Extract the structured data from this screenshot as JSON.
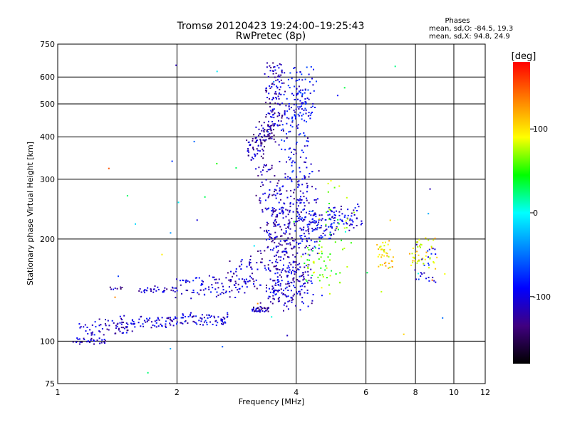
{
  "chart_data": {
    "type": "scatter",
    "title_line1": "Tromsø 20120423 19:24:00–19:25:43",
    "title_line2": "RwPretec (8p)",
    "xlabel": "Frequency [MHz]",
    "ylabel": "Stationary phase Virtual Height [km]",
    "x_scale": "log",
    "y_scale": "log",
    "xlim": [
      1,
      12
    ],
    "ylim": [
      75,
      750
    ],
    "x_ticks": [
      1,
      2,
      4,
      6,
      8,
      10,
      12
    ],
    "y_ticks": [
      75,
      100,
      200,
      300,
      400,
      500,
      600,
      750
    ],
    "x_grid": [
      2,
      4,
      6,
      8,
      10
    ],
    "y_grid": [
      100,
      200,
      300,
      400,
      500,
      600
    ],
    "grid": true,
    "phases_box": {
      "title": "Phases",
      "line1": "mean, sd,O: -84.5, 19.3",
      "line2": "mean, sd,X:  94.8, 24.9"
    },
    "colorbar": {
      "label": "[deg]",
      "range": [
        -180,
        180
      ],
      "ticks": [
        100,
        0,
        -100
      ],
      "colors": [
        "#ff0000",
        "#ff8000",
        "#ffff00",
        "#00ff00",
        "#00ffff",
        "#0080ff",
        "#0000ff",
        "#400080",
        "#000000"
      ]
    },
    "series": [
      {
        "x": [
          1.05,
          1.4
        ],
        "y": [
          100,
          100
        ],
        "phase": -110,
        "spread": 0.04,
        "n": 30
      },
      {
        "x": [
          1.12,
          1.25
        ],
        "y": [
          102,
          112
        ],
        "phase": -105,
        "spread": 0.03,
        "n": 18
      },
      {
        "x": [
          1.25,
          1.55
        ],
        "y": [
          105,
          115
        ],
        "phase": -110,
        "spread": 0.035,
        "n": 45
      },
      {
        "x": [
          1.45,
          1.95
        ],
        "y": [
          110,
          118
        ],
        "phase": -105,
        "spread": 0.03,
        "n": 60
      },
      {
        "x": [
          1.95,
          2.7
        ],
        "y": [
          112,
          120
        ],
        "phase": -100,
        "spread": 0.03,
        "n": 80
      },
      {
        "x": [
          1.6,
          2.0
        ],
        "y": [
          140,
          145
        ],
        "phase": -110,
        "spread": 0.015,
        "n": 35
      },
      {
        "x": [
          2.0,
          2.8
        ],
        "y": [
          135,
          155
        ],
        "phase": -105,
        "spread": 0.03,
        "n": 70
      },
      {
        "x": [
          1.35,
          1.45
        ],
        "y": [
          142,
          145
        ],
        "phase": -120,
        "spread": 0.01,
        "n": 8
      },
      {
        "x": [
          2.7,
          3.2
        ],
        "y": [
          140,
          175
        ],
        "phase": -110,
        "spread": 0.04,
        "n": 60
      },
      {
        "x": [
          3.1,
          3.4
        ],
        "y": [
          122,
          126
        ],
        "phase": -120,
        "spread": 0.01,
        "n": 35
      },
      {
        "x": [
          3.2,
          3.6
        ],
        "y": [
          130,
          330
        ],
        "phase": -115,
        "spread": 0.04,
        "n": 120
      },
      {
        "x": [
          3.4,
          3.9
        ],
        "y": [
          125,
          250
        ],
        "phase": -110,
        "spread": 0.05,
        "n": 150
      },
      {
        "x": [
          3.6,
          4.2
        ],
        "y": [
          150,
          300
        ],
        "phase": -110,
        "spread": 0.05,
        "n": 130
      },
      {
        "x": [
          3.8,
          4.4
        ],
        "y": [
          125,
          175
        ],
        "phase": -105,
        "spread": 0.04,
        "n": 70
      },
      {
        "x": [
          3.0,
          3.3
        ],
        "y": [
          345,
          400
        ],
        "phase": -120,
        "spread": 0.03,
        "n": 50
      },
      {
        "x": [
          3.2,
          3.5
        ],
        "y": [
          380,
          440
        ],
        "phase": -125,
        "spread": 0.04,
        "n": 50
      },
      {
        "x": [
          3.4,
          3.7
        ],
        "y": [
          420,
          650
        ],
        "phase": -115,
        "spread": 0.05,
        "n": 110
      },
      {
        "x": [
          3.7,
          4.3
        ],
        "y": [
          300,
          560
        ],
        "phase": -95,
        "spread": 0.05,
        "n": 120
      },
      {
        "x": [
          3.9,
          4.4
        ],
        "y": [
          450,
          650
        ],
        "phase": -90,
        "spread": 0.05,
        "n": 70
      },
      {
        "x": [
          4.0,
          4.5
        ],
        "y": [
          180,
          320
        ],
        "phase": -100,
        "spread": 0.05,
        "n": 90
      },
      {
        "x": [
          4.3,
          5.0
        ],
        "y": [
          200,
          240
        ],
        "phase": -100,
        "spread": 0.04,
        "n": 70
      },
      {
        "x": [
          4.8,
          5.8
        ],
        "y": [
          210,
          250
        ],
        "phase": -100,
        "spread": 0.03,
        "n": 60
      },
      {
        "x": [
          4.2,
          4.8
        ],
        "y": [
          150,
          190
        ],
        "phase": 60,
        "spread": 0.05,
        "n": 40
      },
      {
        "x": [
          4.6,
          5.5
        ],
        "y": [
          140,
          300
        ],
        "phase": 60,
        "spread": 0.06,
        "n": 40
      },
      {
        "x": [
          6.4,
          7.0
        ],
        "y": [
          165,
          195
        ],
        "phase": 100,
        "spread": 0.04,
        "n": 40
      },
      {
        "x": [
          7.8,
          9.0
        ],
        "y": [
          165,
          200
        ],
        "phase": 100,
        "spread": 0.04,
        "n": 45
      },
      {
        "x": [
          8.0,
          9.0
        ],
        "y": [
          150,
          200
        ],
        "phase": -95,
        "spread": 0.04,
        "n": 25
      },
      {
        "x": [
          1.3,
          11.0
        ],
        "y": [
          80,
          700
        ],
        "phase": 40,
        "spread": 0.0,
        "n": 45
      }
    ]
  }
}
